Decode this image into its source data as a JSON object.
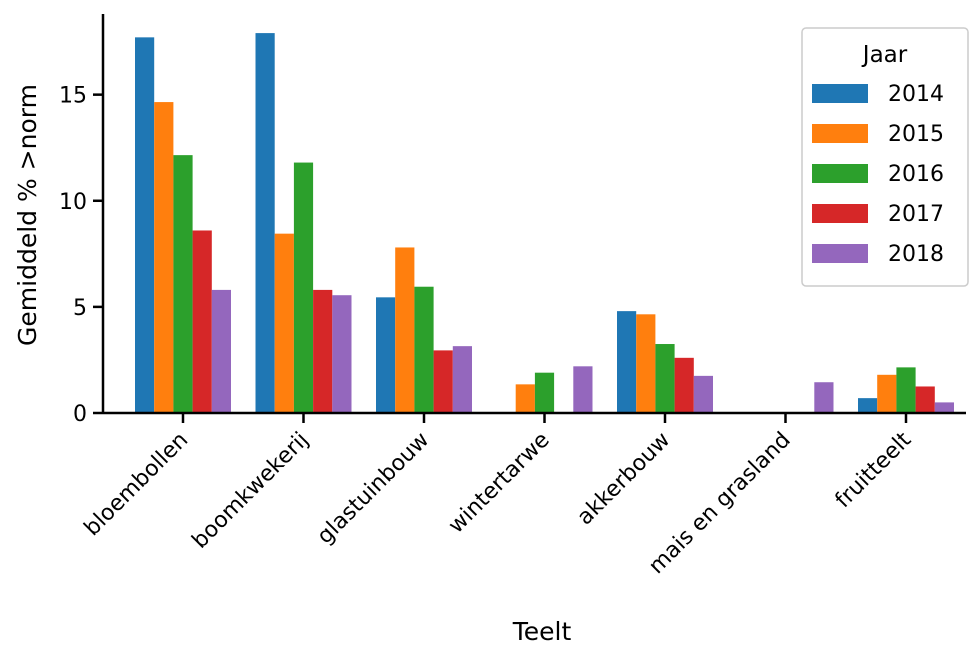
{
  "chart_data": {
    "type": "bar",
    "title": "",
    "xlabel": "Teelt",
    "ylabel": "Gemiddeld % >norm",
    "ylim": [
      0,
      18.8
    ],
    "yticks": [
      0,
      5,
      10,
      15
    ],
    "categories": [
      "bloembollen",
      "boomkwekerij",
      "glastuinbouw",
      "wintertarwe",
      "akkerbouw",
      "mais en grasland",
      "fruitteelt"
    ],
    "legend": {
      "title": "Jaar",
      "placement": "top-right"
    },
    "grid": false,
    "series": [
      {
        "name": "2014",
        "color": "#1f77b4",
        "values": [
          17.7,
          17.9,
          5.45,
          0,
          4.8,
          0,
          0.7
        ]
      },
      {
        "name": "2015",
        "color": "#ff7f0e",
        "values": [
          14.65,
          8.45,
          7.8,
          1.35,
          4.65,
          0,
          1.8
        ]
      },
      {
        "name": "2016",
        "color": "#2ca02c",
        "values": [
          12.15,
          11.8,
          5.95,
          1.9,
          3.25,
          0,
          2.15
        ]
      },
      {
        "name": "2017",
        "color": "#d62728",
        "values": [
          8.6,
          5.8,
          2.95,
          0,
          2.6,
          0,
          1.25
        ]
      },
      {
        "name": "2018",
        "color": "#9467bd",
        "values": [
          5.8,
          5.55,
          3.15,
          2.2,
          1.75,
          1.45,
          0.5
        ]
      }
    ]
  }
}
